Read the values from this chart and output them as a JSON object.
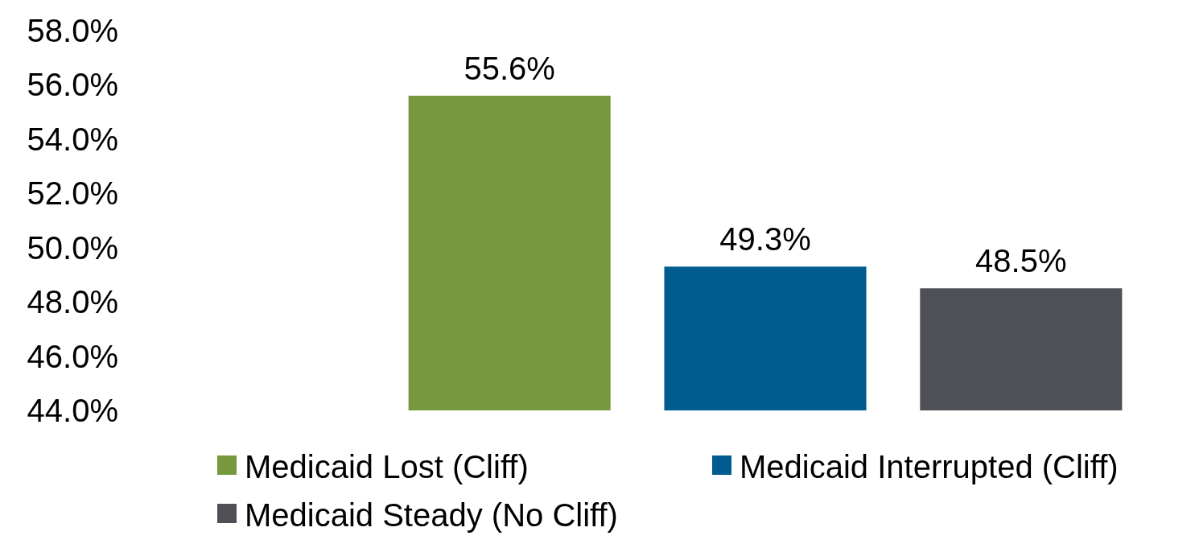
{
  "chart_data": {
    "type": "bar",
    "categories": [
      null
    ],
    "series": [
      {
        "name": "Medicaid Lost (Cliff)",
        "color": "#77993e",
        "values": [
          55.6
        ],
        "value_labels": [
          "55.6%"
        ]
      },
      {
        "name": "Medicaid Interrupted (Cliff)",
        "color": "#005b8f",
        "values": [
          49.3
        ],
        "value_labels": [
          "49.3%"
        ]
      },
      {
        "name": "Medicaid Steady (No Cliff)",
        "color": "#4f5055",
        "values": [
          48.5
        ],
        "value_labels": [
          "48.5%"
        ]
      }
    ],
    "ylim": [
      44,
      58
    ],
    "yticks": [
      {
        "value": 44,
        "label": "44.0%"
      },
      {
        "value": 46,
        "label": "46.0%"
      },
      {
        "value": 48,
        "label": "48.0%"
      },
      {
        "value": 50,
        "label": "50.0%"
      },
      {
        "value": 52,
        "label": "52.0%"
      },
      {
        "value": 54,
        "label": "54.0%"
      },
      {
        "value": 56,
        "label": "56.0%"
      },
      {
        "value": 58,
        "label": "58.0%"
      }
    ],
    "legend": "bottom",
    "grid": false
  }
}
